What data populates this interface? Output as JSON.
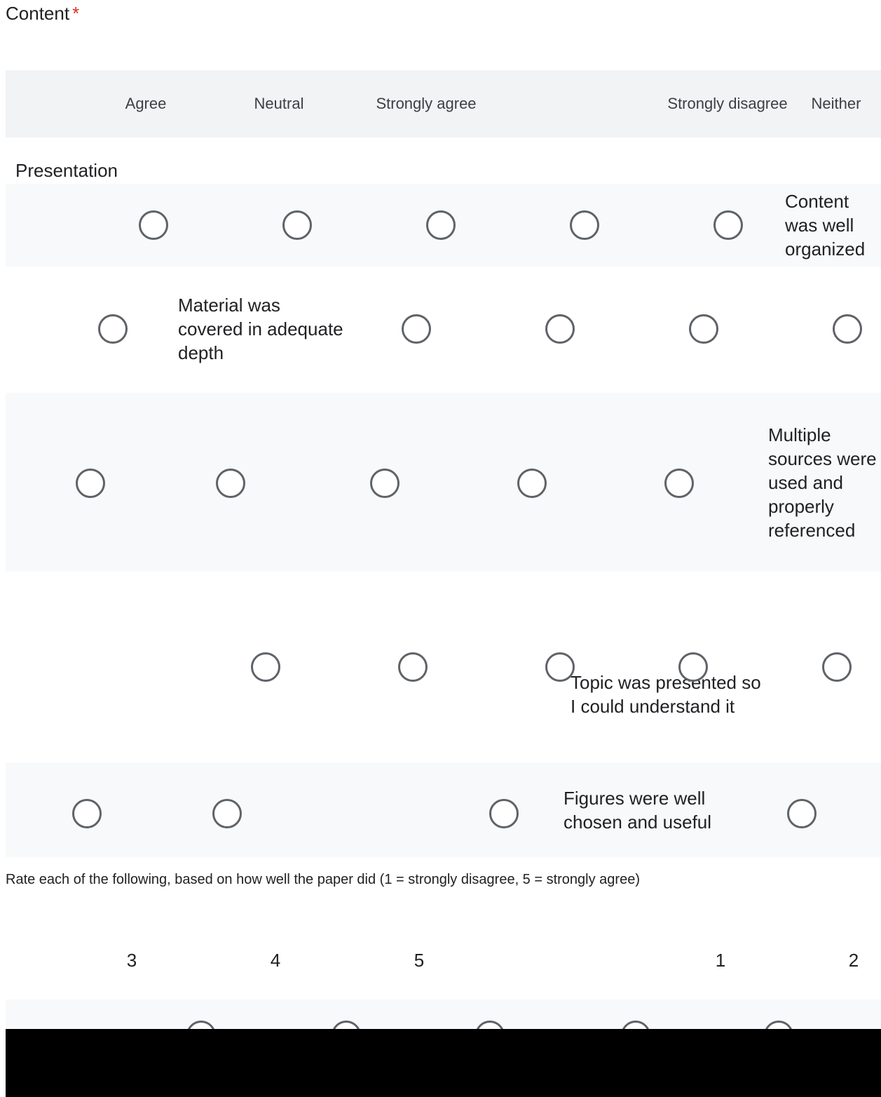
{
  "sections": {
    "content_title": "Content",
    "required_mark": "*",
    "presentation_title": "Presentation",
    "next_question": "Rate each of the following, based on how well the paper did (1 = strongly disagree, 5 = strongly agree)"
  },
  "columns": [
    "Agree",
    "Strongly agree",
    "Neutral",
    "Strongly disagree",
    "Neither"
  ],
  "rows": [
    {
      "label": "Content was well organized"
    },
    {
      "label": "Material was covered in adequate depth"
    },
    {
      "label": "Multiple sources were used and properly referenced"
    },
    {
      "label": "Topic was presented so I could understand it"
    },
    {
      "label": "Figures were well chosen and useful"
    }
  ],
  "scale_numbers": [
    "3",
    "4",
    "5",
    "1",
    "2"
  ]
}
